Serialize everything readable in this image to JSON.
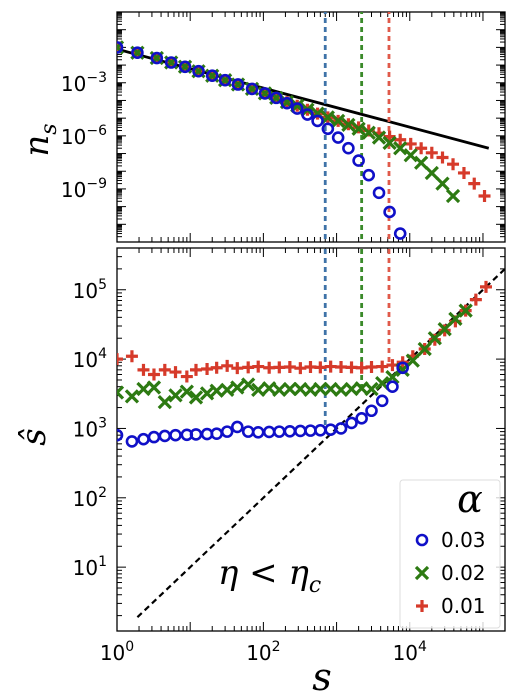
{
  "chart_data": [
    {
      "type": "scatter",
      "panel": "top",
      "ylabel": "n_s",
      "xscale": "log",
      "yscale": "log",
      "xlim": [
        1,
        200000
      ],
      "ylim": [
        1e-12,
        10.0
      ],
      "y_ticks": [
        {
          "value": 0.001,
          "base": "10",
          "exp": "−3"
        },
        {
          "value": 1e-06,
          "base": "10",
          "exp": "−6"
        },
        {
          "value": 1e-09,
          "base": "10",
          "exp": "−9"
        }
      ],
      "series": [
        {
          "name": "0.03",
          "marker": "circle",
          "color": "#1010c8",
          "x": [
            1,
            1.9,
            3.5,
            5.5,
            8.5,
            13,
            20,
            30,
            45,
            70,
            105,
            150,
            210,
            290,
            400,
            550,
            760,
            1050,
            1450,
            2000,
            2750,
            3800,
            5300,
            7400
          ],
          "y": [
            0.1,
            0.05,
            0.025,
            0.014,
            0.008,
            0.0045,
            0.0025,
            0.0014,
            0.0008,
            0.00045,
            0.00025,
            0.00014,
            7e-05,
            3.5e-05,
            1.6e-05,
            7e-06,
            2.5e-06,
            8e-07,
            2e-07,
            4e-08,
            6e-09,
            6e-10,
            5e-11,
            3e-12
          ]
        },
        {
          "name": "0.02",
          "marker": "x",
          "color": "#2d7a12",
          "x": [
            1,
            1.9,
            3.5,
            5.5,
            8.5,
            13,
            20,
            30,
            45,
            70,
            105,
            150,
            210,
            290,
            400,
            550,
            760,
            1050,
            1450,
            2000,
            2750,
            3800,
            5300,
            7400,
            10300,
            14300,
            20000,
            28000,
            39000
          ],
          "y": [
            0.1,
            0.05,
            0.025,
            0.014,
            0.008,
            0.0045,
            0.0025,
            0.0014,
            0.0008,
            0.00045,
            0.00025,
            0.00014,
            8e-05,
            5e-05,
            3e-05,
            1.8e-05,
            1.1e-05,
            7e-06,
            4.2e-06,
            2.5e-06,
            1.5e-06,
            8e-07,
            4e-07,
            2e-07,
            8e-08,
            3e-08,
            8e-09,
            2e-09,
            4e-10
          ]
        },
        {
          "name": "0.01",
          "marker": "plus",
          "color": "#d63a2a",
          "x": [
            1,
            1.9,
            3.5,
            5.5,
            8.5,
            13,
            20,
            30,
            45,
            70,
            105,
            150,
            210,
            290,
            400,
            550,
            760,
            1050,
            1450,
            2000,
            2750,
            3800,
            5300,
            7400,
            10300,
            14300,
            20000,
            28000,
            39000,
            55000,
            76000,
            105000
          ],
          "y": [
            0.1,
            0.05,
            0.025,
            0.014,
            0.008,
            0.0045,
            0.0025,
            0.0014,
            0.0008,
            0.00045,
            0.00025,
            0.00014,
            8e-05,
            5e-05,
            3e-05,
            1.8e-05,
            1.1e-05,
            7e-06,
            4.5e-06,
            3e-06,
            2e-06,
            1.4e-06,
            9e-07,
            6e-07,
            3.5e-07,
            2e-07,
            1.1e-07,
            6e-08,
            2.5e-08,
            8e-09,
            2e-09,
            4e-10
          ]
        }
      ],
      "power_law_line": {
        "x": [
          1,
          120000
        ],
        "y": [
          0.08,
          2e-07
        ]
      },
      "cutoff_lines": [
        {
          "x": 700,
          "color": "#3f73a8"
        },
        {
          "x": 2200,
          "color": "#3a8a2a"
        },
        {
          "x": 5200,
          "color": "#e05a4a"
        }
      ]
    },
    {
      "type": "scatter",
      "panel": "bottom",
      "xlabel": "s",
      "ylabel": "ŝ",
      "xscale": "log",
      "yscale": "log",
      "xlim": [
        1,
        200000
      ],
      "ylim": [
        1.2,
        400000
      ],
      "x_ticks": [
        {
          "value": 1,
          "base": "10",
          "exp": "0"
        },
        {
          "value": 100,
          "base": "10",
          "exp": "2"
        },
        {
          "value": 10000,
          "base": "10",
          "exp": "4"
        }
      ],
      "y_ticks": [
        {
          "value": 10,
          "base": "10",
          "exp": "1"
        },
        {
          "value": 100,
          "base": "10",
          "exp": "2"
        },
        {
          "value": 1000,
          "base": "10",
          "exp": "3"
        },
        {
          "value": 10000,
          "base": "10",
          "exp": "4"
        },
        {
          "value": 100000,
          "base": "10",
          "exp": "5"
        }
      ],
      "series": [
        {
          "name": "0.03",
          "marker": "circle",
          "color": "#1010c8",
          "x": [
            1,
            1.6,
            2.3,
            3.2,
            4.5,
            6.3,
            9,
            12,
            17,
            23,
            32,
            44,
            62,
            85,
            120,
            165,
            230,
            320,
            440,
            600,
            830,
            1150,
            1600,
            2200,
            3000,
            4200,
            5800,
            8000
          ],
          "y": [
            800,
            650,
            700,
            750,
            780,
            800,
            810,
            820,
            830,
            840,
            900,
            1050,
            900,
            880,
            890,
            900,
            910,
            920,
            930,
            940,
            960,
            1000,
            1200,
            1400,
            1800,
            2500,
            4000,
            7500
          ]
        },
        {
          "name": "0.02",
          "marker": "x",
          "color": "#2d7a12",
          "x": [
            1,
            1.6,
            2.3,
            3.2,
            4.5,
            6.3,
            9,
            12,
            17,
            23,
            32,
            44,
            62,
            85,
            120,
            165,
            230,
            320,
            440,
            600,
            830,
            1150,
            1600,
            2200,
            3000,
            4200,
            5800,
            8000,
            11000,
            16000,
            22000,
            30000,
            42000,
            58000
          ],
          "y": [
            3300,
            2900,
            3700,
            3900,
            2400,
            3000,
            3400,
            2800,
            3200,
            3500,
            3600,
            3900,
            4300,
            3600,
            3800,
            3600,
            3700,
            3700,
            3600,
            3700,
            3700,
            3600,
            3700,
            3800,
            3700,
            4500,
            5500,
            7000,
            9500,
            14000,
            20000,
            27000,
            38000,
            50000
          ]
        },
        {
          "name": "0.01",
          "marker": "plus",
          "color": "#d63a2a",
          "x": [
            1,
            1.6,
            2.3,
            3.2,
            4.5,
            6.3,
            9,
            12,
            17,
            23,
            32,
            44,
            62,
            85,
            120,
            165,
            230,
            320,
            440,
            600,
            830,
            1150,
            1600,
            2200,
            3000,
            4200,
            5800,
            8000,
            11000,
            16000,
            22000,
            30000,
            42000,
            58000,
            80000,
            110000
          ],
          "y": [
            10000,
            11000,
            7000,
            6000,
            7000,
            6500,
            5600,
            7000,
            7200,
            7500,
            8000,
            7400,
            7600,
            7800,
            7500,
            7600,
            7700,
            7400,
            7700,
            7600,
            7800,
            7700,
            7600,
            7500,
            7700,
            7800,
            8200,
            9000,
            11000,
            14000,
            19000,
            26000,
            35000,
            50000,
            72000,
            110000
          ]
        }
      ],
      "identity_line": {
        "x": [
          1.9,
          200000
        ],
        "y": [
          1.9,
          200000
        ]
      },
      "cutoff_lines": [
        {
          "x": 700,
          "color": "#3f73a8",
          "y_end": 1000
        },
        {
          "x": 2200,
          "color": "#3a8a2a",
          "y_end": 3900
        },
        {
          "x": 5200,
          "color": "#e05a4a",
          "y_end": 7800
        }
      ],
      "annotation": "η < η_c"
    }
  ],
  "legend": {
    "title": "α",
    "placement": "lower-right",
    "entries": [
      {
        "label": "0.03",
        "marker": "circle",
        "color": "#1010c8"
      },
      {
        "label": "0.02",
        "marker": "x",
        "color": "#2d7a12"
      },
      {
        "label": "0.01",
        "marker": "plus",
        "color": "#d63a2a"
      }
    ]
  }
}
